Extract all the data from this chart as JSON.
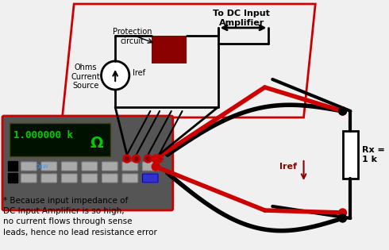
{
  "bg_color": "#f0f0f0",
  "title": "",
  "annotation": "* Because input impedance of\nDC Input Amplifier is so high,\nno current flows through sense\nleads, hence no lead resistance error",
  "label_protection": "Protection\ncircuit",
  "label_ohms": "Ohms\nCurrent\nSource",
  "label_iref_inside": "Iref",
  "label_to_dc": "To DC Input\nAmplifier",
  "label_iref_outside": "Iref",
  "label_rx": "Rx =\n1 k",
  "display_text": "1.000000 k",
  "display_omega": "Ω",
  "red_color": "#cc0000",
  "dark_red": "#8b0000",
  "box_outline": "#cc0000",
  "black": "#000000",
  "green": "#00cc00",
  "dark_gray": "#555555",
  "light_gray": "#dddddd",
  "meter_bg": "#222222",
  "display_bg": "#001100",
  "wire_red": "#cc0000",
  "wire_black": "#111111",
  "node_red": "#cc0000"
}
